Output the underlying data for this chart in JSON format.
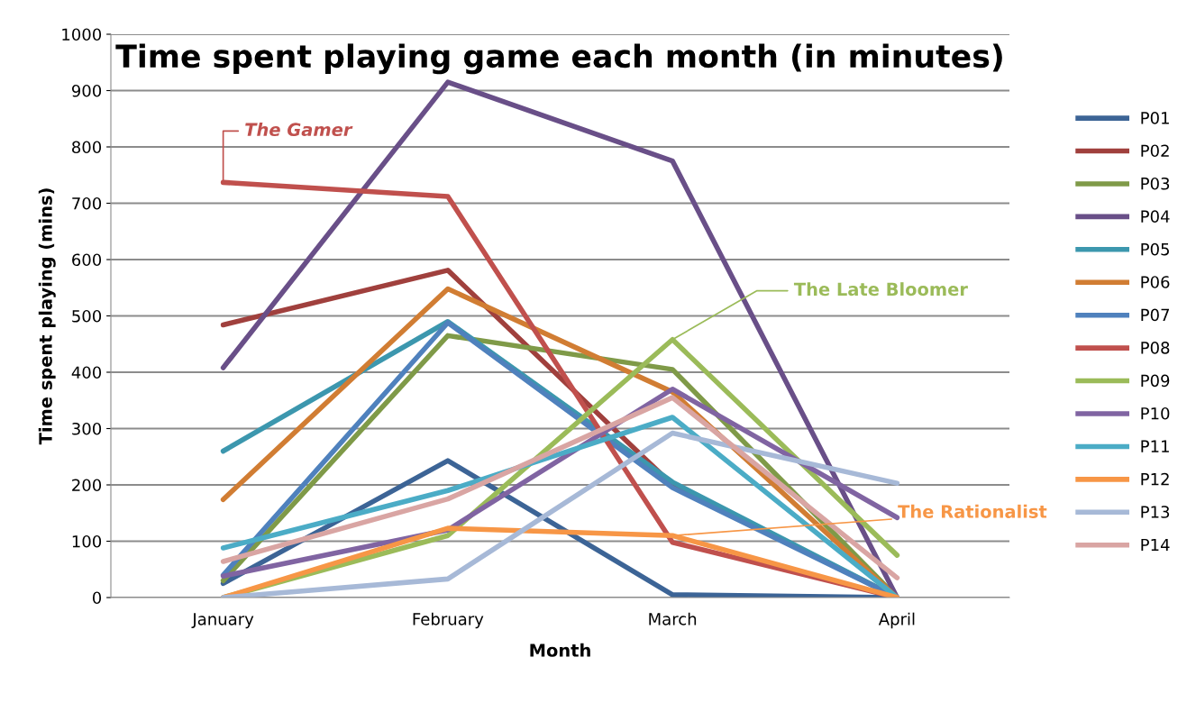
{
  "chart_data": {
    "type": "line",
    "title": "Time spent playing game each month (in minutes)",
    "xlabel": "Month",
    "ylabel": "Time spent playing (mins)",
    "categories": [
      "January",
      "February",
      "March",
      "April"
    ],
    "ylim": [
      0,
      1000
    ],
    "yticks": [
      0,
      100,
      200,
      300,
      400,
      500,
      600,
      700,
      800,
      900,
      1000
    ],
    "grid": "y",
    "legend": "right",
    "marker": "none",
    "line_style": "solid",
    "series": [
      {
        "name": "P01",
        "color": "#3c6496",
        "values": [
          25,
          243,
          5,
          0
        ]
      },
      {
        "name": "P02",
        "color": "#a0403d",
        "values": [
          484,
          581,
          200,
          0
        ]
      },
      {
        "name": "P03",
        "color": "#7f9a48",
        "values": [
          30,
          465,
          405,
          0
        ]
      },
      {
        "name": "P04",
        "color": "#694f88",
        "values": [
          408,
          915,
          775,
          0
        ]
      },
      {
        "name": "P05",
        "color": "#3c97ae",
        "values": [
          260,
          490,
          205,
          0
        ]
      },
      {
        "name": "P06",
        "color": "#d17d33",
        "values": [
          174,
          548,
          365,
          0
        ]
      },
      {
        "name": "P07",
        "color": "#4f81bd",
        "values": [
          40,
          488,
          195,
          0
        ]
      },
      {
        "name": "P08",
        "color": "#c0504d",
        "values": [
          737,
          712,
          98,
          0
        ]
      },
      {
        "name": "P09",
        "color": "#9bbb59",
        "values": [
          0,
          110,
          458,
          75
        ]
      },
      {
        "name": "P10",
        "color": "#8064a2",
        "values": [
          38,
          120,
          370,
          142
        ]
      },
      {
        "name": "P11",
        "color": "#4bacc6",
        "values": [
          88,
          190,
          320,
          0
        ]
      },
      {
        "name": "P12",
        "color": "#f79646",
        "values": [
          0,
          123,
          110,
          0
        ]
      },
      {
        "name": "P13",
        "color": "#a7b9d7",
        "values": [
          0,
          33,
          292,
          203
        ]
      },
      {
        "name": "P14",
        "color": "#d9a5a3",
        "values": [
          64,
          175,
          355,
          35
        ]
      }
    ],
    "annotations": [
      {
        "text": "The Gamer",
        "x": "January",
        "y": 737
      },
      {
        "text": "The Late Bloomer",
        "x": "March",
        "y": 458
      },
      {
        "text": "The Rationalist",
        "x": "March",
        "y": 110
      }
    ]
  }
}
